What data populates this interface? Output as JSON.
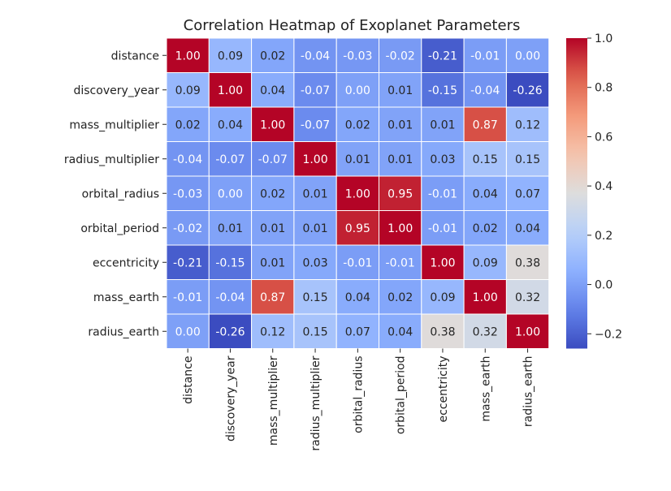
{
  "chart_data": {
    "type": "heatmap",
    "title": "Correlation Heatmap of Exoplanet Parameters",
    "xlabel": "",
    "ylabel": "",
    "row_labels": [
      "distance",
      "discovery_year",
      "mass_multiplier",
      "radius_multiplier",
      "orbital_radius",
      "orbital_period",
      "eccentricity",
      "mass_earth",
      "radius_earth"
    ],
    "col_labels": [
      "distance",
      "discovery_year",
      "mass_multiplier",
      "radius_multiplier",
      "orbital_radius",
      "orbital_period",
      "eccentricity",
      "mass_earth",
      "radius_earth"
    ],
    "values": [
      [
        1.0,
        0.09,
        0.02,
        -0.04,
        -0.03,
        -0.02,
        -0.21,
        -0.01,
        0.0
      ],
      [
        0.09,
        1.0,
        0.04,
        -0.07,
        0.0,
        0.01,
        -0.15,
        -0.04,
        -0.26
      ],
      [
        0.02,
        0.04,
        1.0,
        -0.07,
        0.02,
        0.01,
        0.01,
        0.87,
        0.12
      ],
      [
        -0.04,
        -0.07,
        -0.07,
        1.0,
        0.01,
        0.01,
        0.03,
        0.15,
        0.15
      ],
      [
        -0.03,
        0.0,
        0.02,
        0.01,
        1.0,
        0.95,
        -0.01,
        0.04,
        0.07
      ],
      [
        -0.02,
        0.01,
        0.01,
        0.01,
        0.95,
        1.0,
        -0.01,
        0.02,
        0.04
      ],
      [
        -0.21,
        -0.15,
        0.01,
        0.03,
        -0.01,
        -0.01,
        1.0,
        0.09,
        0.38
      ],
      [
        -0.01,
        -0.04,
        0.87,
        0.15,
        0.04,
        0.02,
        0.09,
        1.0,
        0.32
      ],
      [
        0.0,
        -0.26,
        0.12,
        0.15,
        0.07,
        0.04,
        0.38,
        0.32,
        1.0
      ]
    ],
    "value_format": "2 decimals",
    "colormap": "coolwarm",
    "colorbar": {
      "range": [
        -0.26,
        1.0
      ],
      "ticks": [
        -0.2,
        0.0,
        0.2,
        0.4,
        0.6,
        0.8,
        1.0
      ],
      "tick_labels": [
        "−0.2",
        "0.0",
        "0.2",
        "0.4",
        "0.6",
        "0.8",
        "1.0"
      ],
      "placement": "right"
    },
    "grid": "white lines between cells",
    "legend": "none"
  }
}
